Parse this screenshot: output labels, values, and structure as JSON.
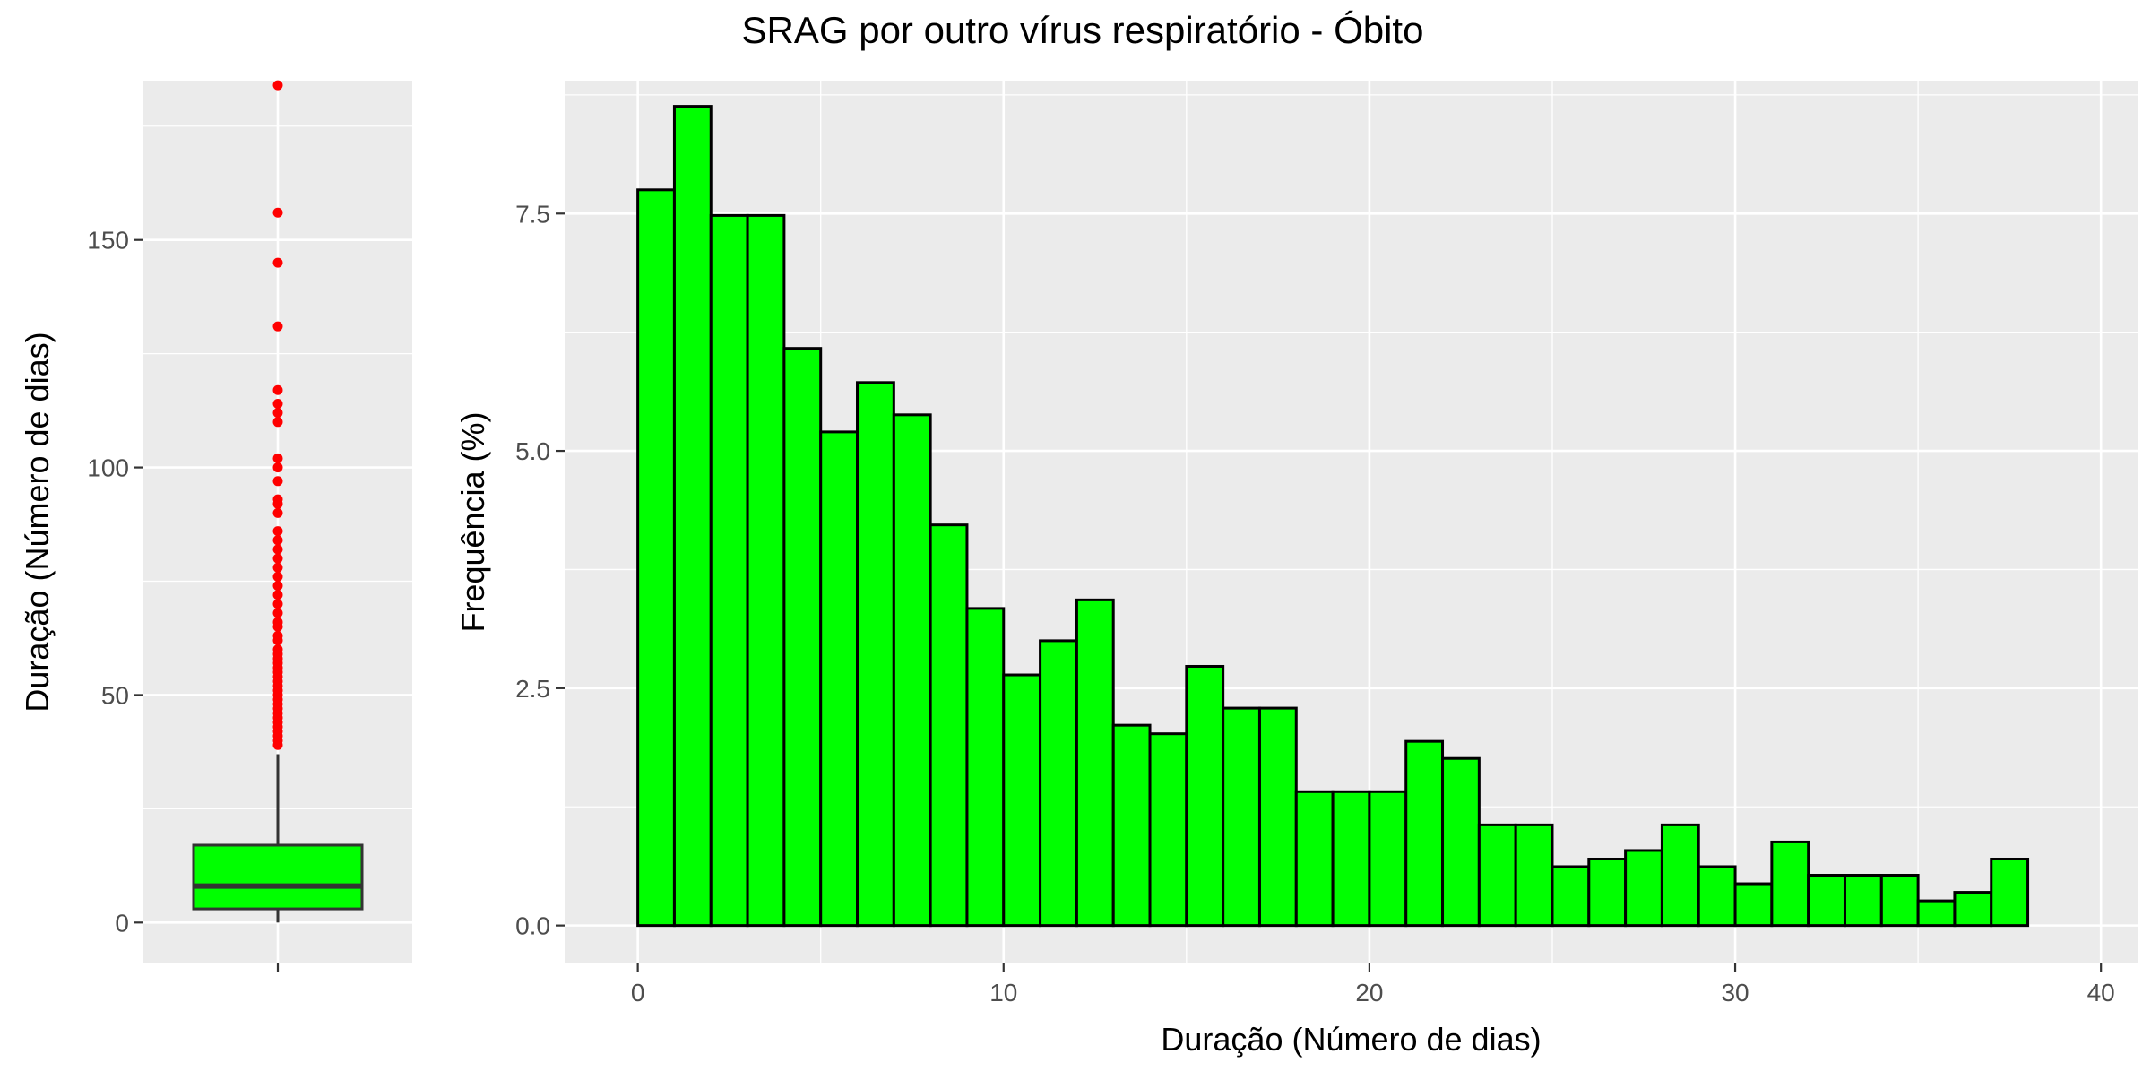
{
  "title": "SRAG por outro vírus respiratório - Óbito",
  "colors": {
    "panel": "#ebebeb",
    "grid": "#ffffff",
    "bar_fill": "#00ff00",
    "bar_stroke": "#000000",
    "outlier": "#ff0000",
    "box_line": "#333333"
  },
  "chart_data": [
    {
      "type": "box",
      "ylabel": "Duração (Número de dias)",
      "ylim": [
        -9,
        185
      ],
      "yticks": [
        0,
        50,
        100,
        150
      ],
      "ytick_labels": [
        "0",
        "50",
        "100",
        "150"
      ],
      "grid": true,
      "box": {
        "min": 0,
        "q1": 3,
        "median": 8,
        "q3": 17,
        "whisker_high": 37
      },
      "outliers": [
        39,
        40,
        41,
        42,
        43,
        44,
        45,
        46,
        47,
        48,
        49,
        50,
        51,
        52,
        53,
        54,
        55,
        56,
        57,
        58,
        59,
        60,
        62,
        63,
        65,
        66,
        68,
        70,
        72,
        74,
        76,
        78,
        80,
        82,
        84,
        86,
        90,
        92,
        93,
        97,
        100,
        102,
        110,
        112,
        114,
        117,
        131,
        145,
        156,
        184
      ]
    },
    {
      "type": "bar",
      "subtype": "histogram",
      "xlabel": "Duração (Número de dias)",
      "ylabel": "Frequência (%)",
      "xlim": [
        -2,
        41
      ],
      "ylim": [
        -0.4,
        8.9
      ],
      "xticks": [
        0,
        10,
        20,
        30,
        40
      ],
      "xtick_labels": [
        "0",
        "10",
        "20",
        "30",
        "40"
      ],
      "yticks": [
        0,
        2.5,
        5,
        7.5
      ],
      "ytick_labels": [
        "0.0",
        "2.5",
        "5.0",
        "7.5"
      ],
      "grid": true,
      "bin_edges": [
        0,
        1,
        2,
        3,
        4,
        5,
        6,
        7,
        8,
        9,
        10,
        11,
        12,
        13,
        14,
        15,
        16,
        17,
        18,
        19,
        20,
        21,
        22,
        23,
        24,
        25,
        26,
        27,
        28,
        29,
        30,
        31,
        32,
        33,
        34,
        35,
        36,
        37,
        38,
        39,
        40
      ],
      "values": [
        7.75,
        8.63,
        7.48,
        7.48,
        6.08,
        5.2,
        5.72,
        5.38,
        4.22,
        3.34,
        2.64,
        3.0,
        3.43,
        2.11,
        2.02,
        2.73,
        2.29,
        2.29,
        1.41,
        1.41,
        1.41,
        1.94,
        1.76,
        1.06,
        1.06,
        0.62,
        0.7,
        0.79,
        1.06,
        0.62,
        0.44,
        0.88,
        0.53,
        0.53,
        0.53,
        0.26,
        0.35,
        0.7,
        0,
        0
      ]
    }
  ]
}
